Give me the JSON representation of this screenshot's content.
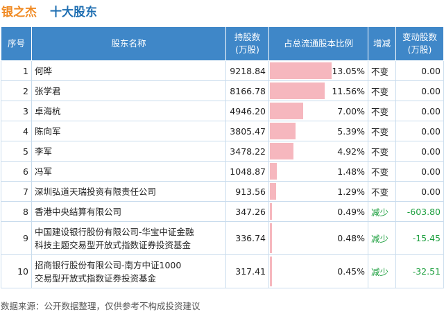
{
  "header": {
    "company": "银之杰",
    "subtitle": "十大股东"
  },
  "columns": {
    "index": "序号",
    "name": "股东名称",
    "shares_line1": "持股数",
    "shares_line2": "(万股)",
    "ratio": "占总流通股本比例",
    "change": "增减",
    "delta_line1": "变动股数",
    "delta_line2": "(万股)"
  },
  "rows": [
    {
      "index": "1",
      "name": "何晔",
      "shares": "9218.84",
      "ratio_text": "13.05%",
      "ratio": 13.05,
      "change": "不变",
      "delta": "0.00"
    },
    {
      "index": "2",
      "name": "张学君",
      "shares": "8166.78",
      "ratio_text": "11.56%",
      "ratio": 11.56,
      "change": "不变",
      "delta": "0.00"
    },
    {
      "index": "3",
      "name": "卓海杭",
      "shares": "4946.20",
      "ratio_text": "7.00%",
      "ratio": 7.0,
      "change": "不变",
      "delta": "0.00"
    },
    {
      "index": "4",
      "name": "陈向军",
      "shares": "3805.47",
      "ratio_text": "5.39%",
      "ratio": 5.39,
      "change": "不变",
      "delta": "0.00"
    },
    {
      "index": "5",
      "name": "李军",
      "shares": "3478.22",
      "ratio_text": "4.92%",
      "ratio": 4.92,
      "change": "不变",
      "delta": "0.00"
    },
    {
      "index": "6",
      "name": "冯军",
      "shares": "1048.87",
      "ratio_text": "1.48%",
      "ratio": 1.48,
      "change": "不变",
      "delta": "0.00"
    },
    {
      "index": "7",
      "name": "深圳弘道天瑞投资有限责任公司",
      "shares": "913.56",
      "ratio_text": "1.29%",
      "ratio": 1.29,
      "change": "不变",
      "delta": "0.00"
    },
    {
      "index": "8",
      "name": "香港中央结算有限公司",
      "shares": "347.26",
      "ratio_text": "0.49%",
      "ratio": 0.49,
      "change": "减少",
      "delta": "-603.80"
    },
    {
      "index": "9",
      "name": "中国建设银行股份有限公司-华宝中证金融科技主题交易型开放式指数证券投资基金",
      "name_line1": "中国建设银行股份有限公司-华宝中证金融",
      "name_line2": "科技主题交易型开放式指数证券投资基金",
      "shares": "336.74",
      "ratio_text": "0.48%",
      "ratio": 0.48,
      "change": "减少",
      "delta": "-15.45"
    },
    {
      "index": "10",
      "name": "招商银行股份有限公司-南方中证1000交易型开放式指数证券投资基金",
      "name_line1": "招商银行股份有限公司-南方中证1000",
      "name_line2": "交易型开放式指数证券投资基金",
      "shares": "317.41",
      "ratio_text": "0.45%",
      "ratio": 0.45,
      "change": "减少",
      "delta": "-32.51"
    }
  ],
  "colors": {
    "header_bg": "#3f87c8",
    "bar": "#f6b7be",
    "decrease": "#1a9e3c",
    "company": "#f08a23",
    "subtitle": "#1f6fb2"
  },
  "footer": {
    "source": "数据来源：公开数据整理，仅供参考不构成投资建议"
  }
}
